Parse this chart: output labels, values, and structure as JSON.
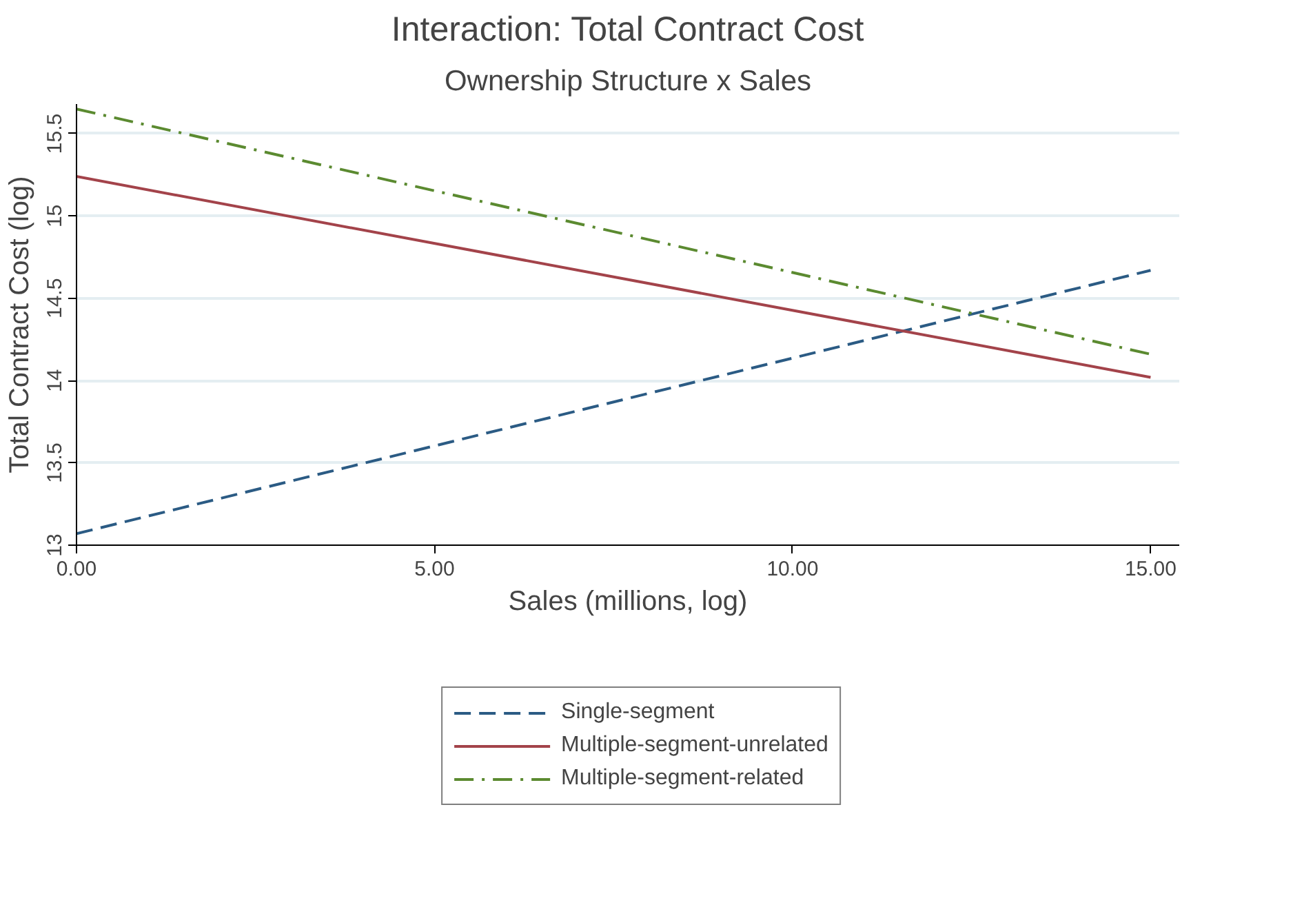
{
  "chart_data": {
    "type": "line",
    "title": "Interaction: Total Contract Cost",
    "subtitle": "Ownership Structure x Sales",
    "xlabel": "Sales (millions, log)",
    "ylabel": "Total Contract Cost (log)",
    "x": [
      0,
      15
    ],
    "series": [
      {
        "name": "Single-segment",
        "color": "#2b5b84",
        "values": [
          13.07,
          14.67
        ],
        "line_style": "dashed"
      },
      {
        "name": "Multiple-segment-unrelated",
        "color": "#a3434a",
        "values": [
          15.24,
          14.02
        ],
        "line_style": "solid"
      },
      {
        "name": "Multiple-segment-related",
        "color": "#5b8a30",
        "values": [
          15.65,
          14.16
        ],
        "line_style": "dashdot"
      }
    ],
    "xlim": [
      0,
      15.4
    ],
    "ylim": [
      13,
      15.68
    ],
    "xticks": [
      {
        "value": 0,
        "label": "0.00"
      },
      {
        "value": 5,
        "label": "5.00"
      },
      {
        "value": 10,
        "label": "10.00"
      },
      {
        "value": 15,
        "label": "15.00"
      }
    ],
    "yticks": [
      13,
      13.5,
      14,
      14.5,
      15,
      15.5
    ],
    "grid": "y",
    "legend": "bottom",
    "marker": "none"
  }
}
